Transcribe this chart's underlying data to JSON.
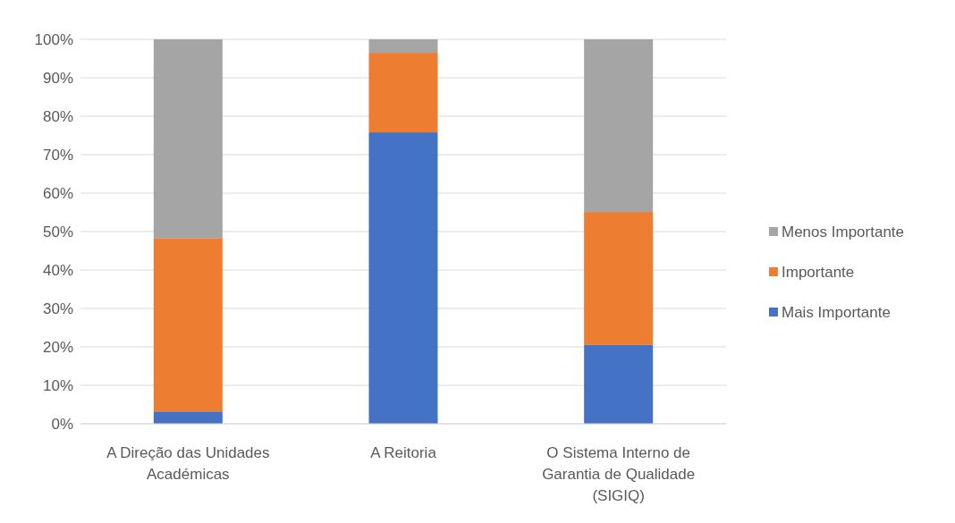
{
  "chart_data": {
    "type": "bar",
    "stacked": true,
    "categories": [
      "A Direção das Unidades Académicas",
      "A Reitoria",
      "O Sistema Interno de Garantia de Qualidade (SIGIQ)"
    ],
    "series": [
      {
        "name": "Mais Importante",
        "color": "#4472c4",
        "values": [
          3.2,
          75.8,
          20.5
        ]
      },
      {
        "name": "Importante",
        "color": "#ed7d31",
        "values": [
          45.1,
          20.7,
          34.6
        ]
      },
      {
        "name": "Menos Importante",
        "color": "#a5a5a5",
        "values": [
          51.7,
          3.5,
          44.9
        ]
      }
    ],
    "ylim": [
      0,
      100
    ],
    "yticks": [
      {
        "value": 0,
        "label": "0%"
      },
      {
        "value": 10,
        "label": "10%"
      },
      {
        "value": 20,
        "label": "20%"
      },
      {
        "value": 30,
        "label": "30%"
      },
      {
        "value": 40,
        "label": "40%"
      },
      {
        "value": 50,
        "label": "50%"
      },
      {
        "value": 60,
        "label": "60%"
      },
      {
        "value": 70,
        "label": "70%"
      },
      {
        "value": 80,
        "label": "80%"
      },
      {
        "value": 90,
        "label": "90%"
      },
      {
        "value": 100,
        "label": "100%"
      }
    ],
    "grid": "y",
    "legend": "right"
  }
}
